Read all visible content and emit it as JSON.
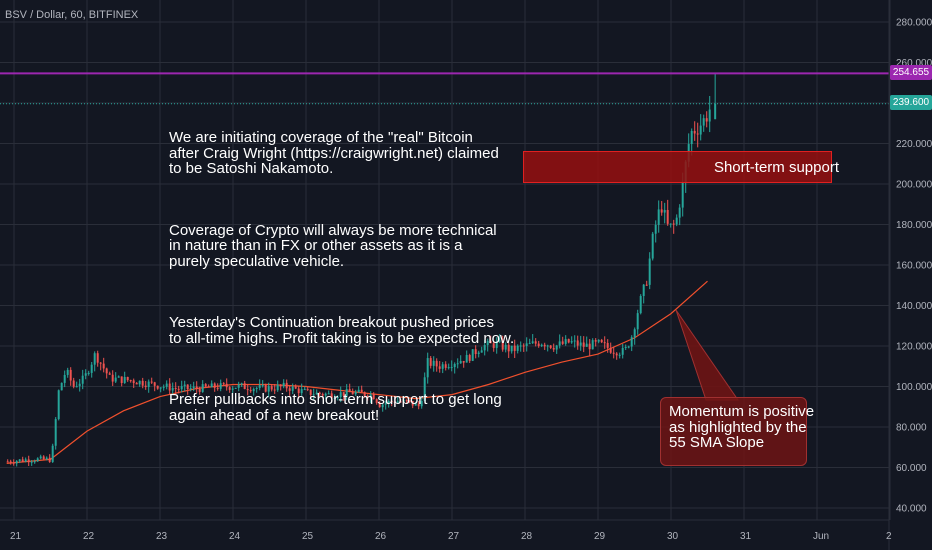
{
  "header": {
    "symbol": "BSV / Dollar, 60, BITFINEX"
  },
  "annotations": {
    "main_text": [
      "We are initiating coverage of the \"real\" Bitcoin\nafter Craig Wright (https://craigwright.net) claimed\nto be Satoshi Nakamoto.",
      "Coverage of Crypto will always be more technical\nin nature than in FX or other assets as it is a\npurely speculative vehicle.",
      "Yesterday's Continuation breakout pushed prices\nto all-time highs. Profit taking is to be expected now.",
      "Prefer pullbacks into shor-term support to get long\nagain ahead of a new breakout!"
    ],
    "support_label": "Short-term support",
    "momentum_callout": "Momentum is positive\nas highlighted by the\n55 SMA Slope"
  },
  "colors": {
    "background": "#131722",
    "up": "#26a69a",
    "down": "#ef5350",
    "sma": "#f0502d",
    "ath_line": "#9c27b0",
    "last_line": "#26a69a",
    "grid": "#2a2e39",
    "axis_text": "#b2b5be"
  },
  "price_tags": {
    "ath": "254.655",
    "last": "239.600"
  },
  "chart_data": {
    "type": "candlestick",
    "title": "BSV / Dollar, 60, BITFINEX",
    "x_ticks": [
      "21",
      "22",
      "23",
      "24",
      "25",
      "26",
      "27",
      "28",
      "29",
      "30",
      "31",
      "Jun",
      "2"
    ],
    "y_ticks": [
      "40.000",
      "60.000",
      "80.000",
      "100.000",
      "120.000",
      "140.000",
      "160.000",
      "180.000",
      "200.000",
      "220.000",
      "240.000",
      "260.000",
      "280.000"
    ],
    "ylim": [
      36,
      290
    ],
    "grid": true,
    "horizontal_lines": [
      {
        "name": "all-time high",
        "value": 254.655
      },
      {
        "name": "last price",
        "value": 239.6
      }
    ],
    "zones": [
      {
        "name": "Short-term support",
        "low": 200,
        "high": 216,
        "from_day": 28,
        "to_day": 32.2
      }
    ],
    "series": [
      {
        "name": "BSV/USD close (approx.)",
        "type": "candles",
        "points": [
          {
            "day": 20.9,
            "close": 63
          },
          {
            "day": 21.2,
            "close": 64
          },
          {
            "day": 21.5,
            "close": 64
          },
          {
            "day": 21.6,
            "close": 98
          },
          {
            "day": 21.7,
            "close": 108
          },
          {
            "day": 21.8,
            "close": 100
          },
          {
            "day": 21.95,
            "close": 104
          },
          {
            "day": 22.1,
            "close": 116
          },
          {
            "day": 22.3,
            "close": 104
          },
          {
            "day": 22.6,
            "close": 103
          },
          {
            "day": 22.9,
            "close": 101
          },
          {
            "day": 23.2,
            "close": 99
          },
          {
            "day": 23.5,
            "close": 99
          },
          {
            "day": 23.8,
            "close": 100
          },
          {
            "day": 24.1,
            "close": 100
          },
          {
            "day": 24.4,
            "close": 99
          },
          {
            "day": 24.7,
            "close": 100
          },
          {
            "day": 25.0,
            "close": 97
          },
          {
            "day": 25.3,
            "close": 96
          },
          {
            "day": 25.6,
            "close": 97
          },
          {
            "day": 25.9,
            "close": 96
          },
          {
            "day": 26.0,
            "close": 91
          },
          {
            "day": 26.2,
            "close": 93
          },
          {
            "day": 26.4,
            "close": 92
          },
          {
            "day": 26.55,
            "close": 90
          },
          {
            "day": 26.65,
            "close": 112
          },
          {
            "day": 26.8,
            "close": 110
          },
          {
            "day": 27.0,
            "close": 112
          },
          {
            "day": 27.2,
            "close": 114
          },
          {
            "day": 27.4,
            "close": 120
          },
          {
            "day": 27.6,
            "close": 121
          },
          {
            "day": 27.8,
            "close": 118
          },
          {
            "day": 28.0,
            "close": 120
          },
          {
            "day": 28.2,
            "close": 122
          },
          {
            "day": 28.4,
            "close": 120
          },
          {
            "day": 28.6,
            "close": 122
          },
          {
            "day": 28.8,
            "close": 120
          },
          {
            "day": 29.0,
            "close": 121
          },
          {
            "day": 29.2,
            "close": 118
          },
          {
            "day": 29.35,
            "close": 117
          },
          {
            "day": 29.45,
            "close": 125
          },
          {
            "day": 29.55,
            "close": 140
          },
          {
            "day": 29.65,
            "close": 152
          },
          {
            "day": 29.75,
            "close": 176
          },
          {
            "day": 29.85,
            "close": 190
          },
          {
            "day": 29.95,
            "close": 178
          },
          {
            "day": 30.05,
            "close": 180
          },
          {
            "day": 30.15,
            "close": 200
          },
          {
            "day": 30.25,
            "close": 225
          },
          {
            "day": 30.35,
            "close": 228
          },
          {
            "day": 30.45,
            "close": 232
          },
          {
            "day": 30.55,
            "close": 239.6
          }
        ]
      },
      {
        "name": "55 SMA",
        "type": "line",
        "points": [
          {
            "day": 20.9,
            "close": 62
          },
          {
            "day": 21.5,
            "close": 64
          },
          {
            "day": 22.0,
            "close": 78
          },
          {
            "day": 22.5,
            "close": 88
          },
          {
            "day": 23.0,
            "close": 95
          },
          {
            "day": 23.5,
            "close": 99
          },
          {
            "day": 24.0,
            "close": 101
          },
          {
            "day": 24.5,
            "close": 101
          },
          {
            "day": 25.0,
            "close": 100
          },
          {
            "day": 25.5,
            "close": 98
          },
          {
            "day": 26.0,
            "close": 96
          },
          {
            "day": 26.5,
            "close": 94
          },
          {
            "day": 27.0,
            "close": 96
          },
          {
            "day": 27.5,
            "close": 101
          },
          {
            "day": 28.0,
            "close": 107
          },
          {
            "day": 28.5,
            "close": 112
          },
          {
            "day": 29.0,
            "close": 116
          },
          {
            "day": 29.5,
            "close": 124
          },
          {
            "day": 30.0,
            "close": 136
          },
          {
            "day": 30.5,
            "close": 152
          }
        ]
      }
    ]
  }
}
